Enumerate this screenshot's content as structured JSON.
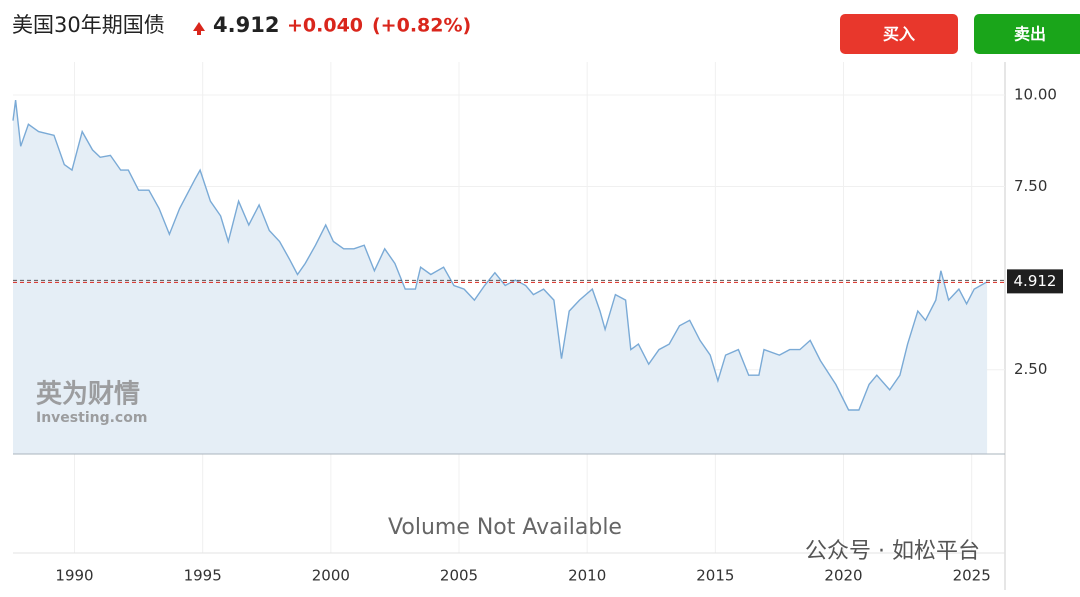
{
  "header": {
    "title": "美国30年期国债",
    "price": 4.912,
    "change": "+0.040",
    "change_pct": "(+0.82%)"
  },
  "buttons": {
    "buy": "买入",
    "sell": "卖出"
  },
  "watermark": {
    "brand": "英为财情",
    "site": "Investing.com",
    "account": "公众号 · 如松平台"
  },
  "chart_data": {
    "type": "area",
    "volume_note": "Volume Not Available",
    "color": "#7aaad6",
    "fill": "#e5eef6",
    "xlim": [
      1987.6,
      2026.3
    ],
    "ylim": [
      0.2,
      10.9
    ],
    "xticks": [
      1990,
      1995,
      2000,
      2005,
      2010,
      2015,
      2020,
      2025
    ],
    "yticks": [
      {
        "value": 2.5,
        "label": "2.50"
      },
      {
        "value": 7.5,
        "label": "7.50"
      },
      {
        "value": 10,
        "label": "10.00"
      }
    ],
    "grid": true,
    "x": [
      1987.6,
      1987.7,
      1987.9,
      1988.2,
      1988.6,
      1989.2,
      1989.6,
      1989.9,
      1990.3,
      1990.7,
      1991.0,
      1991.4,
      1991.8,
      1992.1,
      1992.5,
      1992.9,
      1993.3,
      1993.7,
      1994.1,
      1994.7,
      1994.9,
      1995.3,
      1995.7,
      1996.0,
      1996.4,
      1996.8,
      1997.2,
      1997.6,
      1998.0,
      1998.4,
      1998.7,
      1999.0,
      1999.4,
      1999.8,
      2000.1,
      2000.5,
      2000.9,
      2001.3,
      2001.7,
      2002.1,
      2002.5,
      2002.9,
      2003.3,
      2003.5,
      2003.9,
      2004.4,
      2004.8,
      2005.2,
      2005.6,
      2006.0,
      2006.4,
      2006.8,
      2007.2,
      2007.6,
      2007.9,
      2008.3,
      2008.7,
      2009.0,
      2009.3,
      2009.7,
      2010.2,
      2010.5,
      2010.7,
      2011.1,
      2011.5,
      2011.7,
      2012.0,
      2012.4,
      2012.8,
      2013.2,
      2013.6,
      2014.0,
      2014.4,
      2014.8,
      2015.1,
      2015.4,
      2015.9,
      2016.3,
      2016.7,
      2016.9,
      2017.5,
      2017.9,
      2018.3,
      2018.7,
      2019.1,
      2019.7,
      2020.2,
      2020.6,
      2021.0,
      2021.3,
      2021.8,
      2022.2,
      2022.5,
      2022.9,
      2023.2,
      2023.6,
      2023.8,
      2024.1,
      2024.5,
      2024.8,
      2025.1,
      2025.6
    ],
    "values": [
      9.3,
      9.86,
      8.6,
      9.2,
      9.0,
      8.9,
      8.1,
      7.95,
      9.0,
      8.5,
      8.3,
      8.35,
      7.95,
      7.95,
      7.4,
      7.4,
      6.9,
      6.2,
      6.9,
      7.7,
      7.95,
      7.1,
      6.7,
      6.0,
      7.1,
      6.45,
      7.0,
      6.3,
      6.0,
      5.5,
      5.1,
      5.4,
      5.9,
      6.45,
      6.0,
      5.8,
      5.8,
      5.9,
      5.2,
      5.8,
      5.4,
      4.7,
      4.7,
      5.3,
      5.1,
      5.3,
      4.8,
      4.7,
      4.4,
      4.8,
      5.15,
      4.8,
      4.95,
      4.8,
      4.55,
      4.7,
      4.4,
      2.8,
      4.1,
      4.4,
      4.7,
      4.1,
      3.6,
      4.55,
      4.4,
      3.05,
      3.2,
      2.65,
      3.05,
      3.2,
      3.7,
      3.85,
      3.3,
      2.9,
      2.2,
      2.9,
      3.05,
      2.35,
      2.35,
      3.05,
      2.9,
      3.05,
      3.05,
      3.3,
      2.75,
      2.1,
      1.4,
      1.4,
      2.1,
      2.35,
      1.95,
      2.35,
      3.2,
      4.1,
      3.85,
      4.4,
      5.2,
      4.4,
      4.7,
      4.3,
      4.7,
      4.9
    ]
  }
}
